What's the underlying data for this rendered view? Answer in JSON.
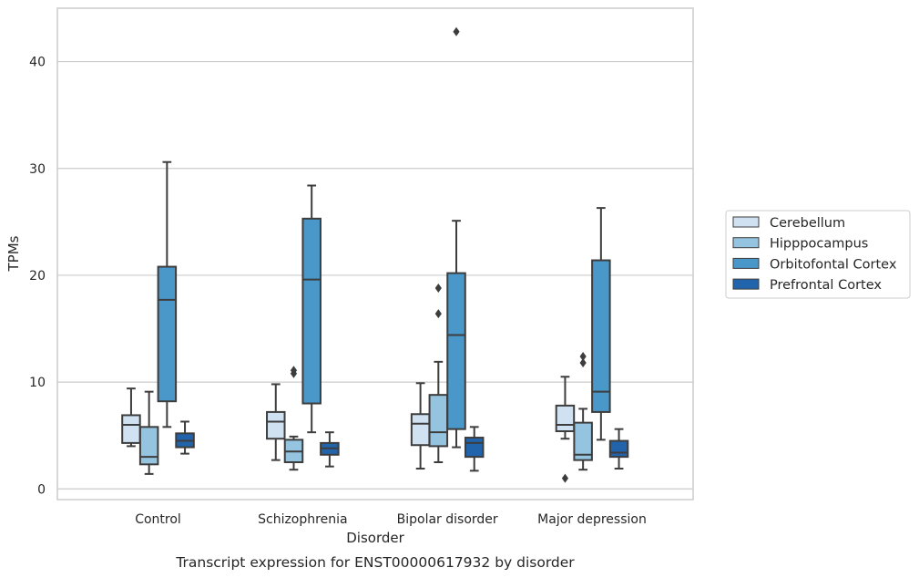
{
  "caption": "Transcript expression for ENST00000617932 by disorder",
  "chart_data": {
    "type": "boxplot",
    "xlabel": "Disorder",
    "ylabel": "TPMs",
    "ylim": [
      -1,
      45
    ],
    "yticks": [
      0,
      10,
      20,
      30,
      40
    ],
    "grid": "horizontal",
    "legend_position": "right",
    "categories": [
      "Control",
      "Schizophrenia",
      "Bipolar disorder",
      "Major depression"
    ],
    "series": [
      {
        "name": "Cerebellum",
        "color": "#d0e1f2",
        "boxes": [
          {
            "whislo": 4.0,
            "q1": 4.3,
            "median": 6.0,
            "q3": 6.9,
            "whishi": 9.4,
            "fliers": []
          },
          {
            "whislo": 2.7,
            "q1": 4.7,
            "median": 6.3,
            "q3": 7.2,
            "whishi": 9.8,
            "fliers": []
          },
          {
            "whislo": 1.9,
            "q1": 4.1,
            "median": 6.1,
            "q3": 7.0,
            "whishi": 9.9,
            "fliers": []
          },
          {
            "whislo": 4.7,
            "q1": 5.4,
            "median": 6.0,
            "q3": 7.8,
            "whishi": 10.5,
            "fliers": [
              1.0
            ]
          }
        ]
      },
      {
        "name": "Hipppocampus",
        "color": "#94c4df",
        "boxes": [
          {
            "whislo": 1.4,
            "q1": 2.3,
            "median": 3.0,
            "q3": 5.8,
            "whishi": 9.1,
            "fliers": []
          },
          {
            "whislo": 1.8,
            "q1": 2.5,
            "median": 3.5,
            "q3": 4.6,
            "whishi": 4.9,
            "fliers": [
              10.8,
              11.1
            ]
          },
          {
            "whislo": 2.5,
            "q1": 4.0,
            "median": 5.3,
            "q3": 8.8,
            "whishi": 11.9,
            "fliers": [
              16.4,
              18.8
            ]
          },
          {
            "whislo": 1.8,
            "q1": 2.7,
            "median": 3.2,
            "q3": 6.2,
            "whishi": 7.5,
            "fliers": [
              11.8,
              12.4
            ]
          }
        ]
      },
      {
        "name": "Orbitofontal Cortex",
        "color": "#4a98c9",
        "boxes": [
          {
            "whislo": 5.8,
            "q1": 8.2,
            "median": 17.7,
            "q3": 20.8,
            "whishi": 30.6,
            "fliers": []
          },
          {
            "whislo": 5.3,
            "q1": 8.0,
            "median": 19.6,
            "q3": 25.3,
            "whishi": 28.4,
            "fliers": []
          },
          {
            "whislo": 3.9,
            "q1": 5.6,
            "median": 14.4,
            "q3": 20.2,
            "whishi": 25.1,
            "fliers": [
              42.8
            ]
          },
          {
            "whislo": 4.6,
            "q1": 7.2,
            "median": 9.1,
            "q3": 21.4,
            "whishi": 26.3,
            "fliers": []
          }
        ]
      },
      {
        "name": "Prefrontal Cortex",
        "color": "#2164ab",
        "boxes": [
          {
            "whislo": 3.3,
            "q1": 3.9,
            "median": 4.5,
            "q3": 5.2,
            "whishi": 6.3,
            "fliers": []
          },
          {
            "whislo": 2.1,
            "q1": 3.2,
            "median": 3.8,
            "q3": 4.3,
            "whishi": 5.3,
            "fliers": []
          },
          {
            "whislo": 1.7,
            "q1": 3.0,
            "median": 4.3,
            "q3": 4.8,
            "whishi": 5.8,
            "fliers": []
          },
          {
            "whislo": 1.9,
            "q1": 3.0,
            "median": 3.4,
            "q3": 4.5,
            "whishi": 5.6,
            "fliers": []
          }
        ]
      }
    ]
  }
}
